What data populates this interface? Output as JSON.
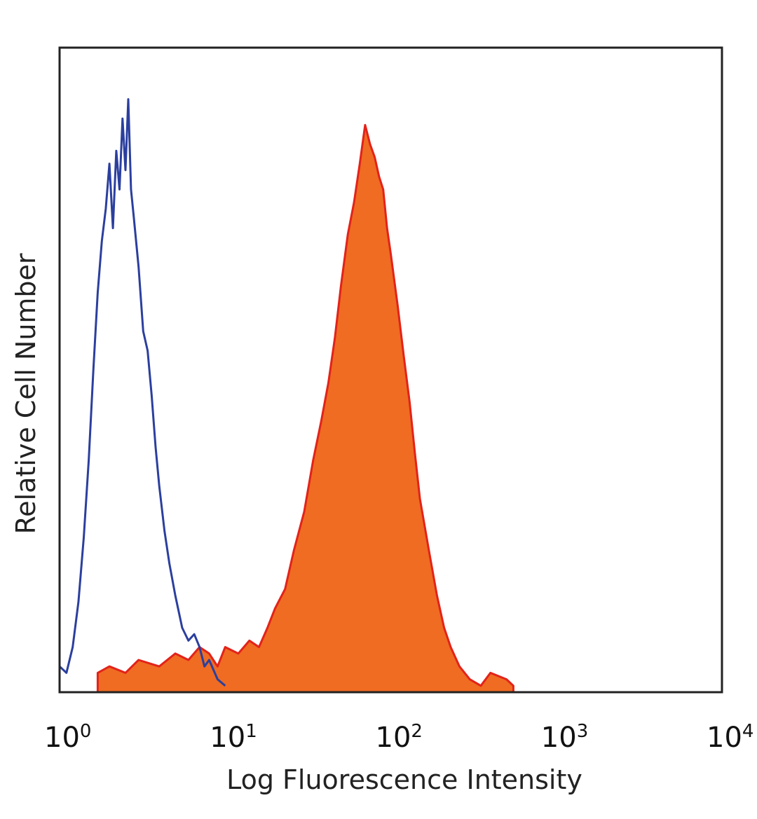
{
  "chart_data": {
    "type": "area",
    "xlabel": "Log Fluorescence Intensity",
    "ylabel": "Relative Cell Number",
    "x_scale": "log",
    "xlim": [
      1,
      10000
    ],
    "ylim": [
      0,
      100
    ],
    "grid": false,
    "x_ticks": [
      {
        "value": 1,
        "base": "10",
        "exp": "0"
      },
      {
        "value": 10,
        "base": "10",
        "exp": "1"
      },
      {
        "value": 100,
        "base": "10",
        "exp": "2"
      },
      {
        "value": 1000,
        "base": "10",
        "exp": "3"
      },
      {
        "value": 10000,
        "base": "10",
        "exp": "4"
      }
    ],
    "series": [
      {
        "style": "outline",
        "color": "#2b3f9e",
        "x": [
          1.0,
          1.1,
          1.2,
          1.3,
          1.4,
          1.5,
          1.6,
          1.7,
          1.8,
          1.9,
          2.0,
          2.1,
          2.2,
          2.3,
          2.4,
          2.5,
          2.6,
          2.7,
          2.8,
          3.0,
          3.2,
          3.4,
          3.6,
          3.8,
          4.0,
          4.3,
          4.6,
          5.0,
          5.5,
          6.0,
          6.5,
          7.0,
          7.5,
          8.0,
          9.0,
          10.0
        ],
        "y": [
          4,
          3,
          7,
          14,
          24,
          36,
          50,
          62,
          70,
          75,
          82,
          72,
          84,
          78,
          89,
          81,
          92,
          78,
          74,
          66,
          56,
          53,
          46,
          38,
          32,
          25,
          20,
          15,
          10,
          8,
          9,
          7,
          4,
          5,
          2,
          1
        ]
      },
      {
        "style": "filled",
        "color": "#ef6c22",
        "edge_color": "#e2231a",
        "x": [
          1.7,
          2.0,
          2.5,
          3.0,
          4.0,
          5.0,
          6.0,
          7.0,
          8.0,
          9.0,
          10.0,
          12.0,
          14.0,
          16.0,
          18.0,
          20.0,
          23.0,
          26.0,
          30.0,
          34.0,
          38.0,
          42.0,
          46.0,
          50.0,
          55.0,
          60.0,
          65.0,
          70.0,
          75.0,
          80.0,
          85.0,
          90.0,
          95.0,
          100.0,
          110.0,
          120.0,
          130.0,
          140.0,
          150.0,
          170.0,
          190.0,
          210.0,
          230.0,
          260.0,
          300.0,
          350.0,
          400.0,
          500.0,
          550.0
        ],
        "y": [
          3,
          4,
          3,
          5,
          4,
          6,
          5,
          7,
          6,
          4,
          7,
          6,
          8,
          7,
          10,
          13,
          16,
          22,
          28,
          36,
          42,
          48,
          55,
          63,
          71,
          76,
          82,
          88,
          85,
          83,
          80,
          78,
          72,
          68,
          60,
          52,
          45,
          37,
          30,
          22,
          15,
          10,
          7,
          4,
          2,
          1,
          3,
          2,
          1
        ]
      }
    ]
  }
}
